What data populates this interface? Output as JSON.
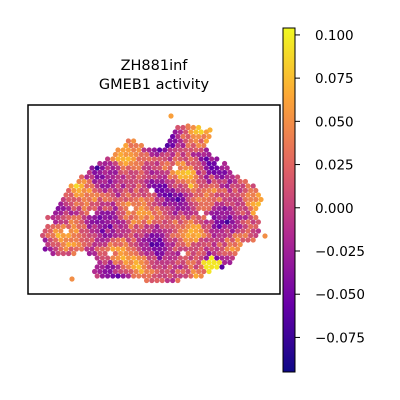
{
  "chart_data": {
    "type": "heatmap",
    "subtype": "spatial hexbin map",
    "title": {
      "line1": "ZH881inf",
      "line2": "GMEB1 activity"
    },
    "xlabel": "",
    "ylabel": "",
    "axes_ticks": "none",
    "grid": false,
    "legend": "none",
    "colorbar": {
      "colormap": "plasma",
      "position": "right",
      "range": [
        -0.095,
        0.104
      ],
      "ticks": [
        -0.075,
        -0.05,
        -0.025,
        0.0,
        0.025,
        0.05,
        0.075,
        0.1
      ],
      "tick_labels": [
        "−0.075",
        "−0.050",
        "−0.025",
        "0.000",
        "0.025",
        "0.050",
        "0.075",
        "0.100"
      ],
      "colors": [
        "#0d0887",
        "#6a00a8",
        "#b12a90",
        "#e16462",
        "#fca636",
        "#f0f921"
      ]
    },
    "values_summary": "Hexagonal spots over a tissue section; values range from about -0.09 (dark purple) to about 0.10 (yellow). Most spots lie between -0.05 and 0.06; a small high-activity cluster (~0.10) sits near the lower-right edge."
  }
}
